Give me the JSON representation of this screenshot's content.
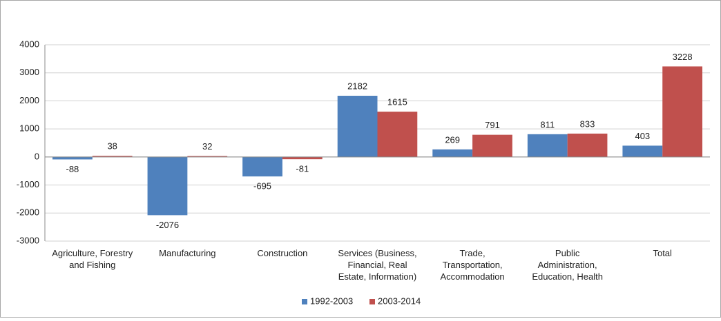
{
  "chart_data": {
    "type": "bar",
    "categories": [
      "Agriculture, Forestry and Fishing",
      "Manufacturing",
      "Construction",
      "Services (Business, Financial, Real Estate, Information)",
      "Trade, Transportation, Accommodation",
      "Public Administration, Education, Health",
      "Total"
    ],
    "series": [
      {
        "name": "1992-2003",
        "color": "#4f81bd",
        "values": [
          -88,
          -2076,
          -695,
          2182,
          269,
          811,
          403
        ]
      },
      {
        "name": "2003-2014",
        "color": "#c0504d",
        "values": [
          38,
          32,
          -81,
          1615,
          791,
          833,
          3228
        ]
      }
    ],
    "ylim": [
      -3000,
      4000
    ],
    "yticks": [
      -3000,
      -2000,
      -1000,
      0,
      1000,
      2000,
      3000,
      4000
    ],
    "grid": true,
    "legend": "bottom"
  }
}
